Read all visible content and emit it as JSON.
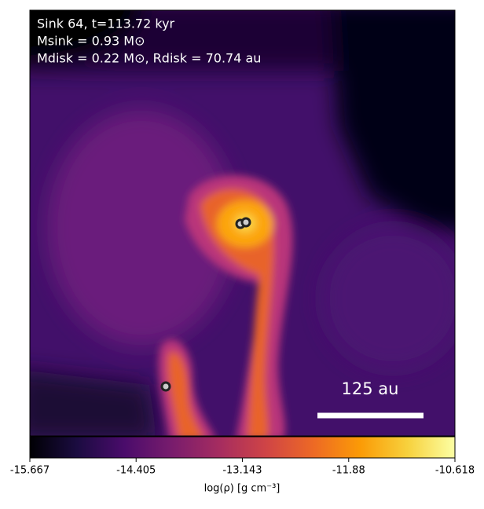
{
  "chart_data": {
    "type": "image",
    "annotations": [
      "Sink 64, t=113.72 kyr",
      "Msink = 0.93 M⊙",
      "Mdisk = 0.22 M⊙, Rdisk = 70.74 au"
    ],
    "scale_bar_label": "125 au",
    "colormap": "inferno",
    "colorbar_label": "log(ρ) [g cm⁻³]",
    "clim": [
      -15.667,
      -10.618
    ],
    "cticks": [
      -15.667,
      -14.405,
      -13.143,
      -11.88,
      -10.618
    ]
  }
}
